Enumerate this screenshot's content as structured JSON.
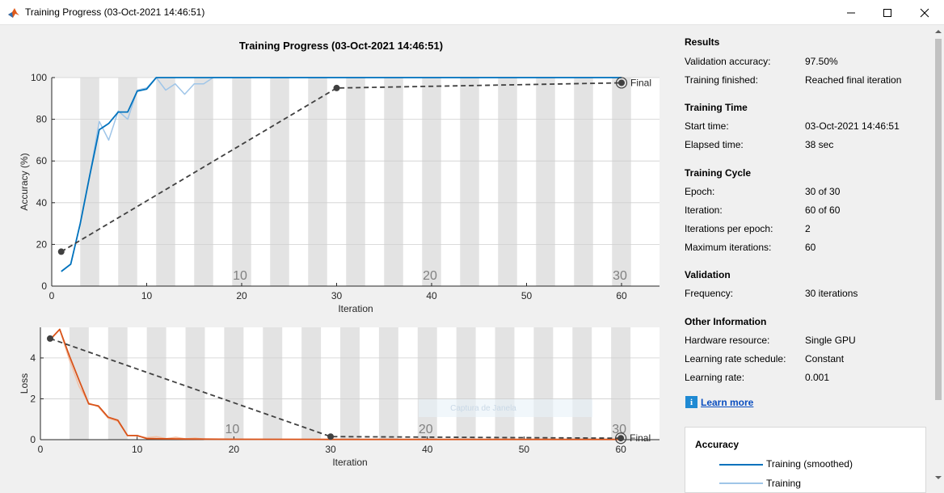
{
  "window": {
    "title": "Training Progress (03-Oct-2021 14:46:51)",
    "controls": [
      "minimize",
      "maximize",
      "close"
    ]
  },
  "plot": {
    "title": "Training Progress (03-Oct-2021 14:46:51)",
    "final_label": "Final",
    "watermark": "Captura de Janela"
  },
  "chart_data": [
    {
      "type": "line",
      "ylabel": "Accuracy (%)",
      "xlabel": "Iteration",
      "xlim": [
        0,
        64
      ],
      "ylim": [
        0,
        100
      ],
      "xticks": [
        0,
        10,
        20,
        30,
        40,
        50,
        60
      ],
      "yticks": [
        0,
        20,
        40,
        60,
        80,
        100
      ],
      "epoch_labels": [
        {
          "epoch": "10",
          "iteration": 20
        },
        {
          "epoch": "20",
          "iteration": 40
        },
        {
          "epoch": "30",
          "iteration": 60
        }
      ],
      "series": [
        {
          "name": "Training (smoothed)",
          "color": "#0072bd",
          "x": [
            1,
            2,
            3,
            4,
            5,
            6,
            7,
            8,
            9,
            10,
            11,
            12,
            13,
            14,
            15,
            16,
            17,
            18,
            19,
            20,
            25,
            30,
            40,
            50,
            60
          ],
          "y": [
            7,
            10.5,
            30,
            53,
            75,
            78,
            83.5,
            83.5,
            93.5,
            94.5,
            100,
            100,
            100,
            100,
            100,
            100,
            100,
            100,
            100,
            100,
            100,
            100,
            100,
            100,
            100
          ]
        },
        {
          "name": "Training",
          "color": "#9fc5e8",
          "x": [
            1,
            2,
            3,
            4,
            5,
            6,
            7,
            8,
            9,
            10,
            11,
            12,
            13,
            14,
            15,
            16,
            17,
            18,
            19,
            20,
            25,
            30,
            40,
            50,
            60
          ],
          "y": [
            7,
            10.5,
            30,
            53,
            79,
            70,
            84,
            80,
            94,
            95,
            100,
            94,
            97,
            92,
            97,
            97,
            100,
            100,
            100,
            100,
            100,
            100,
            100,
            100,
            100
          ]
        },
        {
          "name": "Validation",
          "color": "#404040",
          "x": [
            1,
            30,
            60
          ],
          "y": [
            16.5,
            95,
            97.5
          ]
        }
      ]
    },
    {
      "type": "line",
      "ylabel": "Loss",
      "xlabel": "Iteration",
      "xlim": [
        0,
        64
      ],
      "ylim": [
        0,
        5.5
      ],
      "xticks": [
        0,
        10,
        20,
        30,
        40,
        50,
        60
      ],
      "yticks": [
        0,
        2,
        4
      ],
      "epoch_labels": [
        {
          "epoch": "10",
          "iteration": 20
        },
        {
          "epoch": "20",
          "iteration": 40
        },
        {
          "epoch": "30",
          "iteration": 60
        }
      ],
      "series": [
        {
          "name": "Training (smoothed)",
          "color": "#d95319",
          "x": [
            1,
            2,
            3,
            4,
            5,
            6,
            7,
            8,
            9,
            10,
            11,
            15,
            20,
            30,
            40,
            50,
            60
          ],
          "y": [
            4.9,
            5.4,
            4.1,
            2.9,
            1.75,
            1.65,
            1.1,
            0.95,
            0.2,
            0.2,
            0.05,
            0.03,
            0.02,
            0.01,
            0.01,
            0.01,
            0.01
          ]
        },
        {
          "name": "Training",
          "color": "#f2c2a8",
          "x": [
            1,
            2,
            3,
            4,
            5,
            6,
            7,
            8,
            9,
            10,
            11,
            12,
            13,
            14,
            15,
            16,
            17,
            20,
            30,
            40,
            50,
            60
          ],
          "y": [
            4.9,
            5.4,
            3.9,
            2.6,
            1.8,
            1.6,
            1.05,
            0.9,
            0.2,
            0.18,
            0.1,
            0.15,
            0.05,
            0.12,
            0.04,
            0.08,
            0.02,
            0.02,
            0.01,
            0.01,
            0.01,
            0.01
          ]
        },
        {
          "name": "Validation",
          "color": "#404040",
          "x": [
            1,
            30,
            60
          ],
          "y": [
            4.95,
            0.15,
            0.07
          ]
        }
      ]
    }
  ],
  "panel": {
    "results": {
      "title": "Results",
      "rows": [
        {
          "label": "Validation accuracy:",
          "value": "97.50%"
        },
        {
          "label": "Training finished:",
          "value": "Reached final iteration"
        }
      ]
    },
    "time": {
      "title": "Training Time",
      "rows": [
        {
          "label": "Start time:",
          "value": "03-Oct-2021 14:46:51"
        },
        {
          "label": "Elapsed time:",
          "value": "38 sec"
        }
      ]
    },
    "cycle": {
      "title": "Training Cycle",
      "rows": [
        {
          "label": "Epoch:",
          "value": "30 of 30"
        },
        {
          "label": "Iteration:",
          "value": "60 of 60"
        },
        {
          "label": "Iterations per epoch:",
          "value": "2"
        },
        {
          "label": "Maximum iterations:",
          "value": "60"
        }
      ]
    },
    "validation": {
      "title": "Validation",
      "rows": [
        {
          "label": "Frequency:",
          "value": "30 iterations"
        }
      ]
    },
    "other": {
      "title": "Other Information",
      "rows": [
        {
          "label": "Hardware resource:",
          "value": "Single GPU"
        },
        {
          "label": "Learning rate schedule:",
          "value": "Constant"
        },
        {
          "label": "Learning rate:",
          "value": "0.001"
        }
      ]
    },
    "learn_more": "Learn more",
    "legend": {
      "title": "Accuracy",
      "items": [
        {
          "label": "Training (smoothed)",
          "color": "#0072bd"
        },
        {
          "label": "Training",
          "color": "#9fc5e8"
        }
      ]
    }
  }
}
